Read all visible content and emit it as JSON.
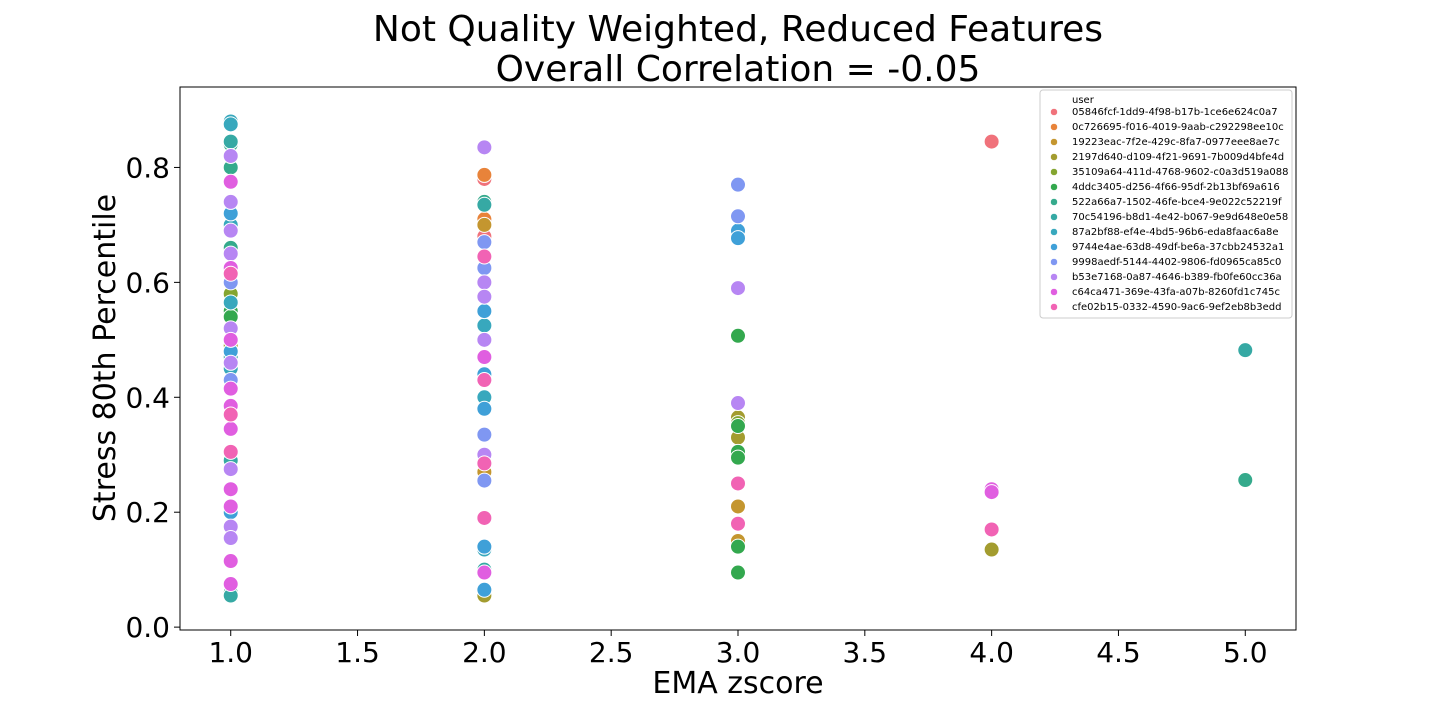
{
  "chart_data": {
    "type": "scatter",
    "title_line1": "Not Quality Weighted, Reduced Features",
    "title_line2": "Overall Correlation = -0.05",
    "xlabel": "EMA zscore",
    "ylabel": "Stress 80th Percentile",
    "xlim": [
      0.8,
      5.2
    ],
    "ylim": [
      -0.005,
      0.94
    ],
    "xticks": [
      1.0,
      1.5,
      2.0,
      2.5,
      3.0,
      3.5,
      4.0,
      4.5,
      5.0
    ],
    "xtick_labels": [
      "1.0",
      "1.5",
      "2.0",
      "2.5",
      "3.0",
      "3.5",
      "4.0",
      "4.5",
      "5.0"
    ],
    "yticks": [
      0.0,
      0.2,
      0.4,
      0.6,
      0.8
    ],
    "ytick_labels": [
      "0.0",
      "0.2",
      "0.4",
      "0.6",
      "0.8"
    ],
    "grid": false,
    "legend_position": "top-right",
    "legend_title": "user",
    "series": [
      {
        "name": "05846fcf-1dd9-4f98-b17b-1ce6e624c0a7",
        "color": "#f0727b",
        "points": [
          [
            2.0,
            0.78
          ],
          [
            2.0,
            0.68
          ],
          [
            4.0,
            0.845
          ]
        ]
      },
      {
        "name": "0c726695-f016-4019-9aab-c292298ee10c",
        "color": "#e8833a",
        "points": [
          [
            2.0,
            0.787
          ],
          [
            2.0,
            0.71
          ]
        ]
      },
      {
        "name": "19223eac-7f2e-429c-8fa7-0977eee8ae7c",
        "color": "#c4962f",
        "points": [
          [
            2.0,
            0.7
          ],
          [
            2.0,
            0.27
          ],
          [
            3.0,
            0.21
          ],
          [
            3.0,
            0.15
          ]
        ]
      },
      {
        "name": "2197d640-d109-4f21-9691-7b009d4bfe4d",
        "color": "#a39c2f",
        "points": [
          [
            1.0,
            0.49
          ],
          [
            2.0,
            0.055
          ],
          [
            3.0,
            0.365
          ],
          [
            3.0,
            0.33
          ],
          [
            4.0,
            0.135
          ]
        ]
      },
      {
        "name": "35109a64-411d-4768-9602-c0a3d519a088",
        "color": "#84a530",
        "points": [
          [
            1.0,
            0.58
          ],
          [
            3.0,
            0.355
          ]
        ]
      },
      {
        "name": "4ddc3405-d256-4f66-95df-2b13bf69a616",
        "color": "#33a84e",
        "points": [
          [
            1.0,
            0.55
          ],
          [
            1.0,
            0.54
          ],
          [
            3.0,
            0.507
          ],
          [
            3.0,
            0.35
          ],
          [
            3.0,
            0.305
          ],
          [
            3.0,
            0.295
          ],
          [
            3.0,
            0.14
          ],
          [
            3.0,
            0.095
          ]
        ]
      },
      {
        "name": "522a66a7-1502-46fe-bce4-9e022c52219f",
        "color": "#35aa8c",
        "points": [
          [
            1.0,
            0.84
          ],
          [
            1.0,
            0.8
          ],
          [
            1.0,
            0.66
          ],
          [
            1.0,
            0.06
          ],
          [
            2.0,
            0.74
          ],
          [
            5.0,
            0.256
          ]
        ]
      },
      {
        "name": "70c54196-b8d1-4e42-b067-9e9d648e0e58",
        "color": "#36a9a4",
        "points": [
          [
            1.0,
            0.845
          ],
          [
            1.0,
            0.47
          ],
          [
            1.0,
            0.29
          ],
          [
            1.0,
            0.055
          ],
          [
            2.0,
            0.735
          ],
          [
            2.0,
            0.1
          ],
          [
            5.0,
            0.482
          ]
        ]
      },
      {
        "name": "87a2bf88-ef4e-4bd5-96b6-eda8faac6a8e",
        "color": "#38a8bd",
        "points": [
          [
            1.0,
            0.88
          ],
          [
            1.0,
            0.875
          ],
          [
            1.0,
            0.7
          ],
          [
            1.0,
            0.565
          ],
          [
            1.0,
            0.45
          ],
          [
            2.0,
            0.525
          ],
          [
            2.0,
            0.4
          ],
          [
            2.0,
            0.135
          ]
        ]
      },
      {
        "name": "9744e4ae-63d8-49df-be6a-37cbb24532a1",
        "color": "#3fa0d8",
        "points": [
          [
            1.0,
            0.72
          ],
          [
            1.0,
            0.48
          ],
          [
            1.0,
            0.2
          ],
          [
            2.0,
            0.55
          ],
          [
            2.0,
            0.44
          ],
          [
            2.0,
            0.38
          ],
          [
            2.0,
            0.14
          ],
          [
            2.0,
            0.065
          ],
          [
            3.0,
            0.69
          ],
          [
            3.0,
            0.677
          ]
        ]
      },
      {
        "name": "9998aedf-5144-4402-9806-fd0965ca85c0",
        "color": "#7f97f2",
        "points": [
          [
            1.0,
            0.6
          ],
          [
            1.0,
            0.43
          ],
          [
            1.0,
            0.24
          ],
          [
            2.0,
            0.67
          ],
          [
            2.0,
            0.625
          ],
          [
            2.0,
            0.335
          ],
          [
            2.0,
            0.255
          ],
          [
            3.0,
            0.77
          ],
          [
            3.0,
            0.715
          ]
        ]
      },
      {
        "name": "b53e7168-0a87-4646-b389-fb0fe60cc36a",
        "color": "#b786f3",
        "points": [
          [
            1.0,
            0.82
          ],
          [
            1.0,
            0.74
          ],
          [
            1.0,
            0.69
          ],
          [
            1.0,
            0.65
          ],
          [
            1.0,
            0.52
          ],
          [
            1.0,
            0.46
          ],
          [
            1.0,
            0.275
          ],
          [
            1.0,
            0.175
          ],
          [
            1.0,
            0.155
          ],
          [
            2.0,
            0.835
          ],
          [
            2.0,
            0.6
          ],
          [
            2.0,
            0.575
          ],
          [
            2.0,
            0.5
          ],
          [
            2.0,
            0.3
          ],
          [
            3.0,
            0.59
          ],
          [
            3.0,
            0.39
          ]
        ]
      },
      {
        "name": "c64ca471-369e-43fa-a07b-8260fd1c745c",
        "color": "#e05ee0",
        "points": [
          [
            1.0,
            0.775
          ],
          [
            1.0,
            0.625
          ],
          [
            1.0,
            0.5
          ],
          [
            1.0,
            0.415
          ],
          [
            1.0,
            0.385
          ],
          [
            1.0,
            0.345
          ],
          [
            1.0,
            0.24
          ],
          [
            1.0,
            0.21
          ],
          [
            1.0,
            0.115
          ],
          [
            1.0,
            0.075
          ],
          [
            2.0,
            0.47
          ],
          [
            2.0,
            0.095
          ],
          [
            4.0,
            0.24
          ],
          [
            4.0,
            0.235
          ]
        ]
      },
      {
        "name": "cfe02b15-0332-4590-9ac6-9ef2eb8b3edd",
        "color": "#f163b4",
        "points": [
          [
            1.0,
            0.615
          ],
          [
            1.0,
            0.37
          ],
          [
            1.0,
            0.305
          ],
          [
            2.0,
            0.645
          ],
          [
            2.0,
            0.43
          ],
          [
            2.0,
            0.285
          ],
          [
            2.0,
            0.19
          ],
          [
            3.0,
            0.25
          ],
          [
            3.0,
            0.18
          ],
          [
            4.0,
            0.17
          ]
        ]
      }
    ]
  }
}
